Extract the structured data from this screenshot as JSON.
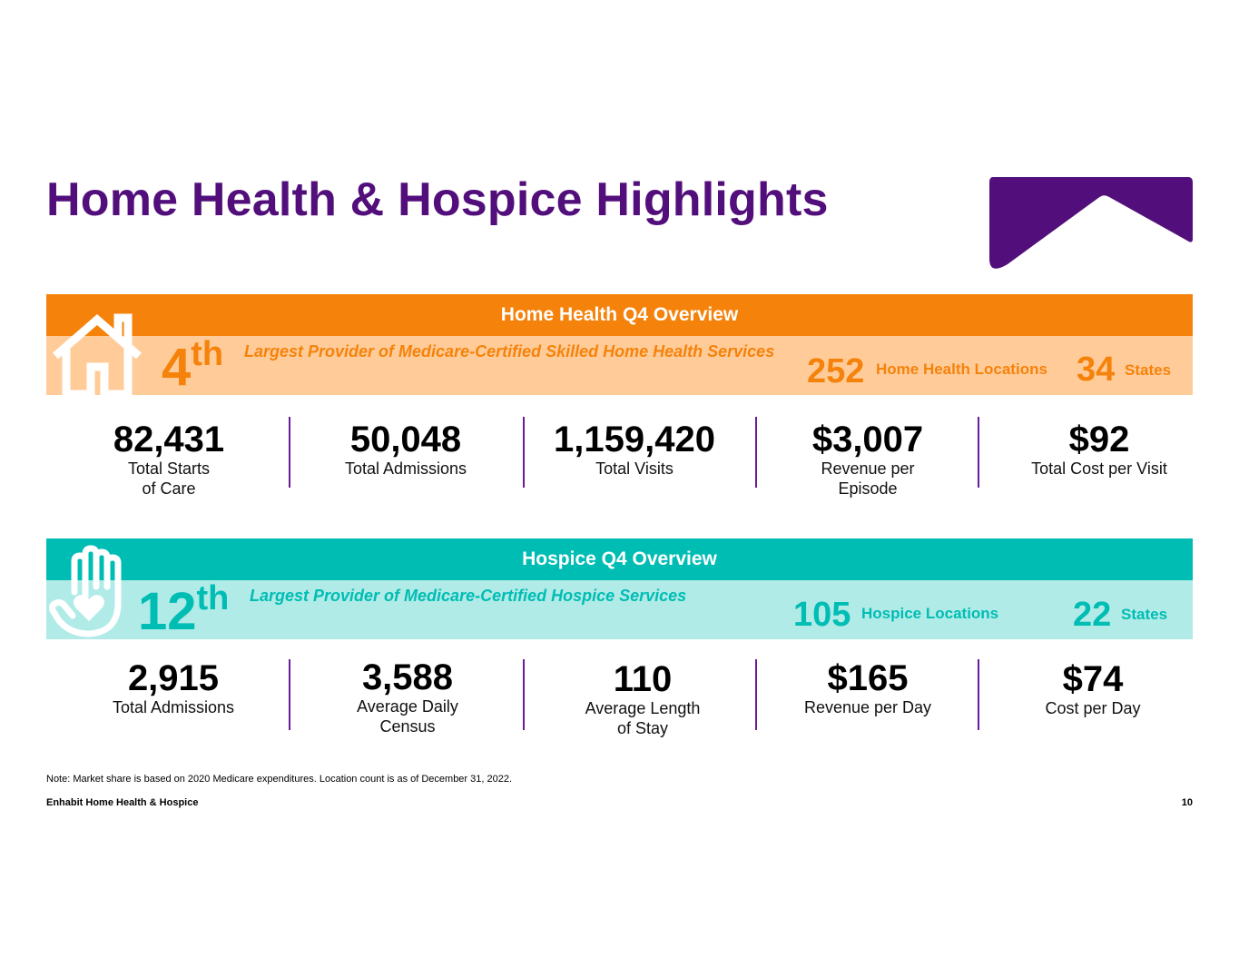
{
  "title": "Home Health & Hospice Highlights",
  "colors": {
    "purple": "#520f7b",
    "orange": "#f5820b",
    "peach": "#ffcc99",
    "teal": "#00bdb4",
    "light_teal": "#b0ebe7"
  },
  "home_health": {
    "header": "Home Health Q4 Overview",
    "icon": "house-icon",
    "rank_num": "4",
    "rank_suffix": "th",
    "rank_desc": "Largest Provider of Medicare-Certified Skilled Home Health Services",
    "locations_num": "252",
    "locations_label": "Home Health Locations",
    "states_num": "34",
    "states_label": "States",
    "stats": [
      {
        "value": "82,431",
        "label": "Total Starts\nof Care"
      },
      {
        "value": "50,048",
        "label": "Total Admissions"
      },
      {
        "value": "1,159,420",
        "label": "Total Visits"
      },
      {
        "value": "$3,007",
        "label": "Revenue per\nEpisode"
      },
      {
        "value": "$92",
        "label": "Total Cost per Visit"
      }
    ]
  },
  "hospice": {
    "header": "Hospice Q4 Overview",
    "icon": "hand-heart-icon",
    "rank_num": "12",
    "rank_suffix": "th",
    "rank_desc": "Largest Provider of Medicare-Certified Hospice Services",
    "locations_num": "105",
    "locations_label": "Hospice Locations",
    "states_num": "22",
    "states_label": "States",
    "stats": [
      {
        "value": "2,915",
        "label": "Total Admissions"
      },
      {
        "value": "3,588",
        "label": "Average Daily\nCensus"
      },
      {
        "value": "110",
        "label": "Average Length\nof Stay"
      },
      {
        "value": "$165",
        "label": "Revenue per Day"
      },
      {
        "value": "$74",
        "label": "Cost per Day"
      }
    ]
  },
  "note": "Note: Market share is based on 2020 Medicare expenditures. Location count is as of December 31, 2022.",
  "footer": {
    "company": "Enhabit Home Health & Hospice",
    "page": "10"
  }
}
